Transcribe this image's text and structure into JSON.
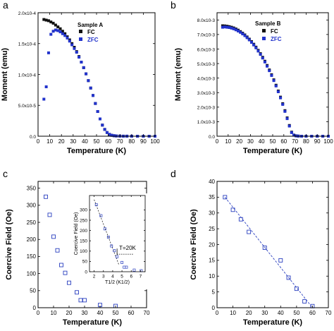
{
  "figure": {
    "panels": [
      {
        "letter": "a"
      },
      {
        "letter": "b"
      },
      {
        "letter": "c"
      },
      {
        "letter": "d"
      }
    ]
  },
  "colors": {
    "fc": "#111111",
    "zfc": "#2233cc",
    "open_square": "#2a3fbf",
    "dashed_line": "#2a3fbf"
  },
  "chart_data": [
    {
      "type": "scatter",
      "panel": "a",
      "title": "",
      "xlabel": "Temperature (K)",
      "ylabel": "Moment (emu)",
      "xlim": [
        0,
        100
      ],
      "ylim": [
        0,
        0.0002
      ],
      "x_ticks": [
        0,
        10,
        20,
        30,
        40,
        50,
        60,
        70,
        80,
        90,
        100
      ],
      "y_ticks": [
        {
          "value": 0,
          "label": "0.0"
        },
        {
          "value": 5e-05,
          "label": "5.0x10-5"
        },
        {
          "value": 0.0001,
          "label": "1.0x10-4"
        },
        {
          "value": 0.00015,
          "label": "1.5x10-4"
        },
        {
          "value": 0.0002,
          "label": "2.0x10-4"
        }
      ],
      "legend_title": "Sample A",
      "legend_position": "top-right",
      "series": [
        {
          "name": "FC",
          "color": "#111111",
          "x": [
            5,
            7,
            9,
            11,
            13,
            15,
            17,
            19,
            21,
            23,
            25,
            27,
            29,
            31,
            33,
            35,
            37,
            39,
            41,
            43,
            45,
            47,
            49,
            51,
            53,
            55,
            57,
            59,
            61,
            63,
            65,
            67,
            70,
            73,
            76,
            80,
            85,
            90,
            95,
            100
          ],
          "y": [
            0.000189,
            0.000188,
            0.000187,
            0.000185,
            0.000183,
            0.00018,
            0.000177,
            0.000174,
            0.00017,
            0.000166,
            0.000161,
            0.000156,
            0.00015,
            0.000144,
            0.000137,
            0.000129,
            0.00012,
            0.000111,
            0.000101,
            9e-05,
            7.8e-05,
            6.6e-05,
            5.3e-05,
            4e-05,
            2.8e-05,
            1.8e-05,
            1.1e-05,
            6e-06,
            3e-06,
            1.5e-06,
            8e-07,
            4e-07,
            2e-07,
            1e-07,
            1e-07,
            5e-08,
            0,
            0,
            0,
            0
          ]
        },
        {
          "name": "ZFC",
          "color": "#2233cc",
          "x": [
            5,
            7,
            9,
            11,
            13,
            15,
            17,
            19,
            21,
            23,
            25,
            27,
            29,
            31,
            33,
            35,
            37,
            39,
            41,
            43,
            45,
            47,
            49,
            51,
            53,
            55,
            57,
            59,
            61,
            63,
            65,
            67,
            70,
            73,
            76,
            80,
            85,
            90,
            95,
            100
          ],
          "y": [
            6e-05,
            8e-05,
            0.000135,
            0.000165,
            0.00017,
            0.000172,
            0.000171,
            0.000169,
            0.000166,
            0.000163,
            0.000159,
            0.000154,
            0.000148,
            0.000142,
            0.000136,
            0.000128,
            0.00012,
            0.000111,
            0.000101,
            9e-05,
            7.8e-05,
            6.6e-05,
            5.3e-05,
            4e-05,
            2.8e-05,
            1.8e-05,
            1.1e-05,
            6e-06,
            3e-06,
            1.5e-06,
            8e-07,
            4e-07,
            2e-07,
            1e-07,
            1e-07,
            5e-08,
            0,
            0,
            0,
            0
          ]
        }
      ]
    },
    {
      "type": "scatter",
      "panel": "b",
      "title": "",
      "xlabel": "Temperature (K)",
      "ylabel": "Moment (emu)",
      "xlim": [
        0,
        100
      ],
      "ylim": [
        0,
        0.0085
      ],
      "x_ticks": [
        0,
        10,
        20,
        30,
        40,
        50,
        60,
        70,
        80,
        90,
        100
      ],
      "y_ticks": [
        {
          "value": 0,
          "label": "0.0"
        },
        {
          "value": 0.001,
          "label": "1.0x10-3"
        },
        {
          "value": 0.002,
          "label": "2.0x10-3"
        },
        {
          "value": 0.003,
          "label": "3.0x10-3"
        },
        {
          "value": 0.004,
          "label": "4.0x10-3"
        },
        {
          "value": 0.005,
          "label": "5.0x10-3"
        },
        {
          "value": 0.006,
          "label": "6.0x10-3"
        },
        {
          "value": 0.007,
          "label": "7.0x10-3"
        },
        {
          "value": 0.008,
          "label": "8.0x10-3"
        }
      ],
      "legend_title": "Sample B",
      "legend_position": "top-right",
      "series": [
        {
          "name": "FC",
          "color": "#111111",
          "x": [
            5,
            7,
            9,
            11,
            13,
            15,
            17,
            19,
            21,
            23,
            25,
            27,
            29,
            31,
            33,
            35,
            37,
            39,
            41,
            43,
            45,
            47,
            49,
            51,
            53,
            55,
            57,
            59,
            61,
            63,
            65,
            67,
            69,
            71,
            73,
            76,
            80,
            85,
            90,
            95,
            100
          ],
          "y": [
            0.0076,
            0.00759,
            0.00757,
            0.00754,
            0.0075,
            0.00745,
            0.00738,
            0.0073,
            0.0072,
            0.00709,
            0.00697,
            0.00683,
            0.00668,
            0.00651,
            0.00633,
            0.00613,
            0.00591,
            0.00568,
            0.00543,
            0.00516,
            0.00487,
            0.00456,
            0.00423,
            0.00388,
            0.00351,
            0.00311,
            0.00269,
            0.00224,
            0.00176,
            0.00126,
            0.00074,
            0.00028,
            8e-05,
            3e-05,
            1e-05,
            0,
            0,
            0,
            0,
            0,
            0
          ]
        },
        {
          "name": "ZFC",
          "color": "#2233cc",
          "x": [
            5,
            7,
            9,
            11,
            13,
            15,
            17,
            19,
            21,
            23,
            25,
            27,
            29,
            31,
            33,
            35,
            37,
            39,
            41,
            43,
            45,
            47,
            49,
            51,
            53,
            55,
            57,
            59,
            61,
            63,
            65,
            67,
            69,
            71,
            73,
            76,
            80,
            85,
            90,
            95,
            100
          ],
          "y": [
            0.0075,
            0.00752,
            0.0075,
            0.00748,
            0.00744,
            0.00739,
            0.00732,
            0.00724,
            0.00715,
            0.00704,
            0.00692,
            0.00678,
            0.00663,
            0.00646,
            0.00628,
            0.00608,
            0.00586,
            0.00563,
            0.00538,
            0.00511,
            0.00482,
            0.00451,
            0.00418,
            0.00383,
            0.00346,
            0.00306,
            0.00264,
            0.00219,
            0.00171,
            0.00121,
            0.0007,
            0.00025,
            7e-05,
            2e-05,
            1e-05,
            0,
            0,
            0,
            0,
            0,
            0
          ]
        }
      ]
    },
    {
      "type": "scatter",
      "panel": "c",
      "title": "",
      "xlabel": "Temperature (K)",
      "ylabel": "Coercive Field (Oe)",
      "xlim": [
        0,
        70
      ],
      "ylim": [
        0,
        370
      ],
      "x_ticks": [
        0,
        10,
        20,
        30,
        40,
        50,
        60,
        70
      ],
      "y_ticks": [
        0,
        50,
        100,
        150,
        200,
        250,
        300,
        350
      ],
      "series": [
        {
          "name": "",
          "color": "#2a3fbf",
          "x": [
            5,
            7.5,
            10,
            12.5,
            15,
            17.5,
            20,
            25,
            27.5,
            30,
            40,
            50
          ],
          "y": [
            325,
            272,
            208,
            168,
            125,
            102,
            73,
            45,
            22,
            22,
            8,
            5
          ]
        }
      ],
      "inset": {
        "xlabel": "T1/2 (K1/2)",
        "ylabel": "Coercive Field (Oe)",
        "xlim": [
          1.5,
          7.5
        ],
        "ylim": [
          0,
          370
        ],
        "x_ticks": [
          2,
          3,
          4,
          5,
          6,
          7
        ],
        "y_ticks": [
          0,
          50,
          100,
          150,
          200,
          250,
          300
        ],
        "annotation": "T=20K",
        "series": [
          {
            "name": "",
            "x": [
              2.24,
              2.74,
              3.16,
              3.54,
              3.87,
              4.18,
              4.47,
              5.0,
              5.24,
              5.48,
              6.32,
              7.07
            ],
            "y": [
              325,
              272,
              208,
              168,
              125,
              102,
              73,
              45,
              22,
              22,
              8,
              5
            ]
          }
        ],
        "fit_line": {
          "x": [
            2.0,
            4.7
          ],
          "y": [
            350,
            30
          ]
        },
        "hline": {
          "x": [
            4.47,
            6.2
          ],
          "y": 85
        }
      }
    },
    {
      "type": "scatter",
      "panel": "d",
      "title": "",
      "xlabel": "Temperature (K)",
      "ylabel": "Coercive Field (Oe)",
      "xlim": [
        0,
        70
      ],
      "ylim": [
        0,
        40
      ],
      "x_ticks": [
        0,
        10,
        20,
        30,
        40,
        50,
        60,
        70
      ],
      "y_ticks": [
        0,
        5,
        10,
        15,
        20,
        25,
        30,
        35,
        40
      ],
      "series": [
        {
          "name": "",
          "color": "#2a3fbf",
          "x": [
            5,
            10,
            15,
            20,
            30,
            40,
            45,
            50,
            55,
            60
          ],
          "y": [
            35,
            31,
            28,
            24,
            19,
            15,
            9.5,
            6,
            2,
            0.5
          ]
        }
      ],
      "fit_line": {
        "x": [
          5,
          60
        ],
        "y": [
          35,
          0
        ]
      }
    }
  ]
}
